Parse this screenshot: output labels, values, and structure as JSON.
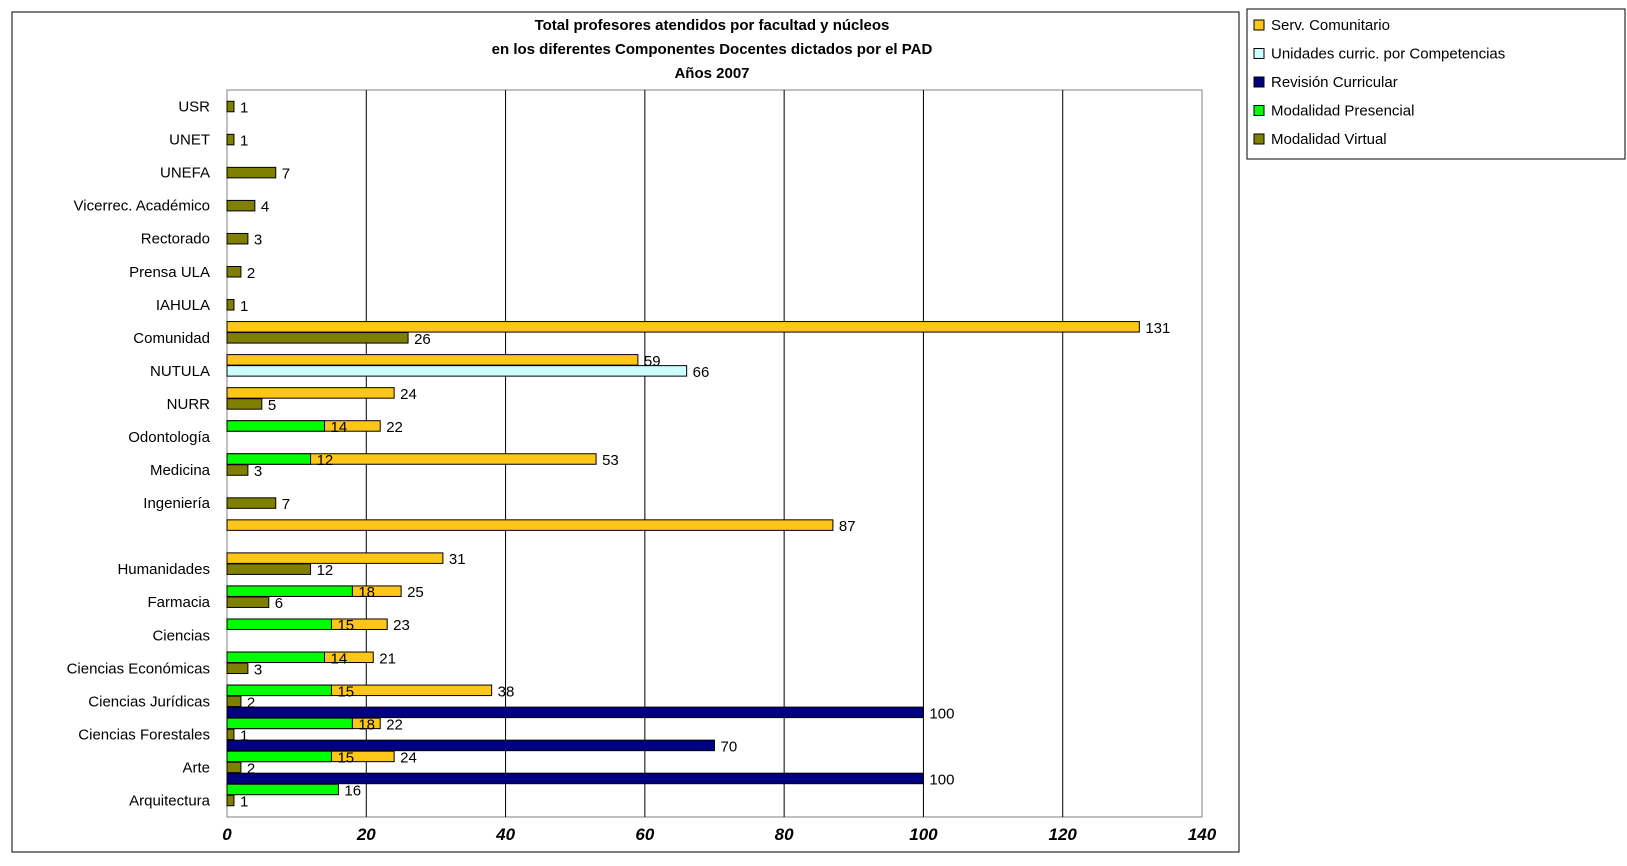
{
  "chart_data": {
    "type": "bar",
    "orientation": "horizontal",
    "title_lines": [
      "Total profesores atendidos por facultad y núcleos",
      "en los diferentes Componentes Docentes dictados por el PAD",
      "Años 2007"
    ],
    "xlabel": "",
    "ylabel": "",
    "xlim": [
      0,
      140
    ],
    "x_ticks": [
      0,
      20,
      40,
      60,
      80,
      100,
      120,
      140
    ],
    "x_tick_labels": [
      "0",
      "20",
      "40",
      "60",
      "80",
      "100",
      "120",
      "140"
    ],
    "grid": "vertical",
    "legend_position": "top-right",
    "categories": [
      "Arquitectura",
      "Arte",
      "Ciencias Forestales",
      "Ciencias Jurídicas",
      "Ciencias Económicas",
      "Ciencias",
      "Farmacia",
      "Humanidades",
      "",
      "Ingeniería",
      "Medicina",
      "Odontología",
      "NURR",
      "NUTULA",
      "Comunidad",
      "IAHULA",
      "Prensa ULA",
      "Rectorado",
      "Vicerrec. Académico",
      "UNEFA",
      "UNET",
      "USR"
    ],
    "series": [
      {
        "name": "Serv. Comunitario",
        "color": "#FFC61A",
        "values": [
          24,
          22,
          38,
          21,
          23,
          25,
          31,
          87,
          null,
          53,
          22,
          24,
          59,
          131,
          null,
          null,
          null,
          null,
          null,
          null,
          null,
          null
        ]
      },
      {
        "name": "Unidades curric. por Competencias",
        "color": "#CCFFFF",
        "values": [
          null,
          null,
          null,
          null,
          null,
          null,
          null,
          null,
          null,
          null,
          null,
          null,
          66,
          null,
          null,
          null,
          null,
          null,
          null,
          null,
          null,
          null
        ]
      },
      {
        "name": "Revisión Curricular",
        "color": "#000080",
        "values": [
          100,
          70,
          100,
          null,
          null,
          null,
          null,
          null,
          null,
          null,
          null,
          null,
          null,
          null,
          null,
          null,
          null,
          null,
          null,
          null,
          null,
          null
        ]
      },
      {
        "name": "Modalidad Presencial",
        "color": "#00FF00",
        "values": [
          16,
          15,
          18,
          15,
          14,
          15,
          18,
          null,
          null,
          null,
          12,
          14,
          null,
          null,
          null,
          null,
          null,
          null,
          null,
          null,
          null,
          null
        ]
      },
      {
        "name": "Modalidad Virtual",
        "color": "#808000",
        "values": [
          1,
          2,
          1,
          2,
          3,
          null,
          6,
          12,
          null,
          7,
          3,
          null,
          5,
          null,
          26,
          1,
          2,
          3,
          4,
          7,
          1,
          1
        ]
      }
    ]
  }
}
